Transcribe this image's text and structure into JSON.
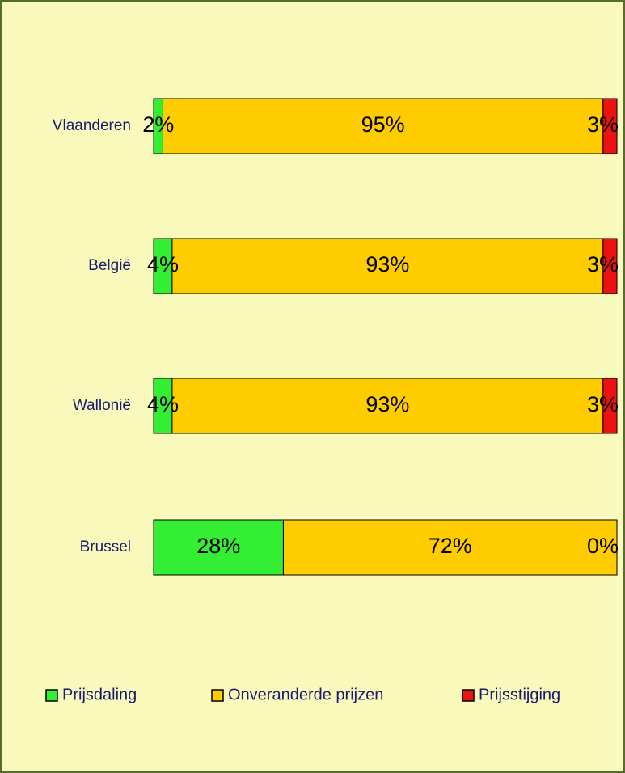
{
  "chart_data": {
    "type": "stacked_bar_horizontal",
    "categories": [
      "Vlaanderen",
      "België",
      "Wallonië",
      "Brussel"
    ],
    "series": [
      {
        "name": "Prijsdaling",
        "color": "#33ee33",
        "values": [
          2,
          4,
          4,
          28
        ],
        "value_labels": [
          "2%",
          "4%",
          "4%",
          "28%"
        ]
      },
      {
        "name": "Onveranderde prijzen",
        "color": "#ffcc00",
        "values": [
          95,
          93,
          93,
          72
        ],
        "value_labels": [
          "95%",
          "93%",
          "93%",
          "72%"
        ]
      },
      {
        "name": "Prijsstijging",
        "color": "#ee1111",
        "values": [
          3,
          3,
          3,
          0
        ],
        "value_labels": [
          "3%",
          "3%",
          "3%",
          "0%"
        ]
      }
    ],
    "xlim": [
      0,
      100
    ],
    "legend": "bottom"
  }
}
